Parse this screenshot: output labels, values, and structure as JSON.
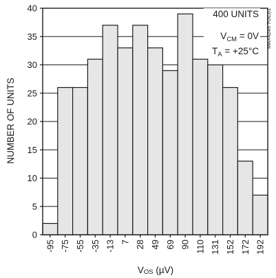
{
  "chart_data": {
    "type": "bar",
    "categories": [
      "-95",
      "-75",
      "-55",
      "-35",
      "-13",
      "7",
      "28",
      "49",
      "69",
      "90",
      "110",
      "131",
      "152",
      "172",
      "192"
    ],
    "values": [
      2,
      26,
      26,
      31,
      37,
      33,
      37,
      33,
      29,
      39,
      31,
      30,
      26,
      13,
      7
    ],
    "ylim": [
      0,
      40
    ],
    "yticks": [
      0,
      5,
      10,
      15,
      20,
      25,
      30,
      35,
      40
    ],
    "grid": true,
    "xlabel": {
      "main": "V",
      "sub": "OS",
      "unit": " (µV)"
    },
    "ylabel": "NUMBER OF UNITS",
    "annotations": {
      "units": "400 UNITS",
      "vcm": {
        "main": "V",
        "sub": "CM",
        "rest": " = 0V"
      },
      "ta": {
        "main": "T",
        "sub": "A",
        "rest": " = +25°C"
      }
    },
    "figure_code": "MAX4249 TOC01",
    "colors": {
      "bar_fill": "#e6e6e6",
      "stroke": "#1a1a1a",
      "grid": "#1a1a1a",
      "background": "#ffffff"
    }
  }
}
